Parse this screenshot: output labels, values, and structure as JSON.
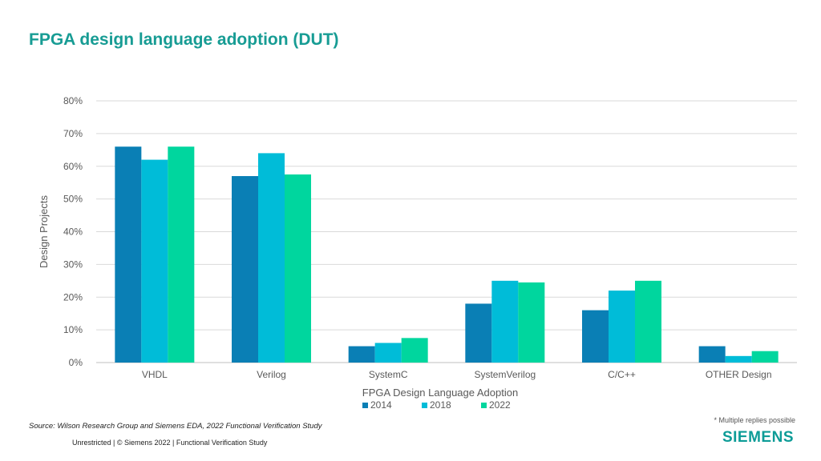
{
  "title": "FPGA design language adoption (DUT)",
  "source": "Source:  Wilson Research Group and Siemens EDA, 2022 Functional Verification Study",
  "footer": "Unrestricted | © Siemens 2022 |  Functional Verification Study",
  "note": "* Multiple replies possible",
  "logo": "SIEMENS",
  "chart_data": {
    "type": "bar",
    "title": "",
    "xlabel": "FPGA Design Language Adoption",
    "ylabel": "Design Projects",
    "ylim": [
      0,
      80
    ],
    "yticks": [
      "0%",
      "10%",
      "20%",
      "30%",
      "40%",
      "50%",
      "60%",
      "70%",
      "80%"
    ],
    "grid": true,
    "legend_position": "bottom",
    "categories": [
      "VHDL",
      "Verilog",
      "SystemC",
      "SystemVerilog",
      "C/C++",
      "OTHER Design"
    ],
    "series": [
      {
        "name": "2014",
        "color": "#0a7fb5",
        "values": [
          66,
          57,
          5,
          18,
          16,
          5
        ]
      },
      {
        "name": "2018",
        "color": "#00bcd8",
        "values": [
          62,
          64,
          6,
          25,
          22,
          2
        ]
      },
      {
        "name": "2022",
        "color": "#00d69e",
        "values": [
          66,
          57.5,
          7.5,
          24.5,
          25,
          3.5
        ]
      }
    ]
  }
}
